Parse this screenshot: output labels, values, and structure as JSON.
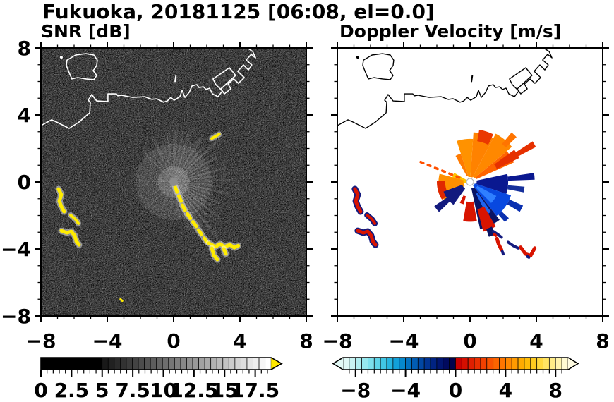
{
  "header": {
    "title": "Fukuoka, 20181125 [06:08, el=0.0]"
  },
  "panels": {
    "snr": {
      "label": "SNR [dB]"
    },
    "velocity": {
      "label": "Doppler Velocity [m/s]"
    }
  },
  "chart_data": [
    {
      "id": "snr",
      "type": "heatmap",
      "title": "SNR [dB]",
      "xlim": [
        -8,
        8
      ],
      "ylim": [
        -8,
        8
      ],
      "xtick_values": [
        -8,
        -4,
        0,
        4,
        8
      ],
      "xtick_labels": [
        "−8",
        "−4",
        "0",
        "4",
        "8"
      ],
      "ytick_values": [
        8,
        4,
        0,
        -4,
        -8
      ],
      "ytick_labels": [
        "8",
        "4",
        "0",
        "−4",
        "−8"
      ],
      "minor_tick_step": 1,
      "grid": false,
      "background": "#050505",
      "coast_color": "#ffffff",
      "colorbar": {
        "kind": "gray-ramp",
        "range": [
          0,
          18.8
        ],
        "solid_black_until": 5,
        "steps": 28,
        "ramp_from": "#101010",
        "ramp_to": "#ffffff",
        "over_arrow_color": "#ffe800",
        "tick_values": [
          0,
          2.5,
          5,
          7.5,
          10,
          12.5,
          15,
          17.5
        ],
        "tick_labels": [
          "0",
          "2.5",
          "5",
          "7.5",
          "10",
          "12.5",
          "15",
          "17.5"
        ],
        "minor_tick_step": 0.5
      }
    },
    {
      "id": "velocity",
      "type": "heatmap",
      "title": "Doppler Velocity [m/s]",
      "xlim": [
        -8,
        8
      ],
      "ylim": [
        -8,
        8
      ],
      "xtick_values": [
        -8,
        -4,
        0,
        4,
        8
      ],
      "xtick_labels": [
        "−8",
        "−4",
        "0",
        "4",
        "8"
      ],
      "ytick_values": [
        8,
        4,
        0,
        -4,
        -8
      ],
      "ytick_labels": [],
      "minor_tick_step": 1,
      "grid": false,
      "background": "#ffffff",
      "coast_color": "#000000",
      "colorbar": {
        "kind": "diverging",
        "range": [
          -9,
          9
        ],
        "under_arrow_color": "#e2f9f6",
        "over_arrow_color": "#fffce2",
        "segment_colors": [
          "#dff8f6",
          "#c8f3f2",
          "#b0eef0",
          "#97e8ee",
          "#7ce0ec",
          "#5fd5e9",
          "#41c7e5",
          "#27b5e0",
          "#12a0d8",
          "#0689cd",
          "#0272c0",
          "#015cb2",
          "#0147a3",
          "#013493",
          "#012382",
          "#011570",
          "#010a5e",
          "#02034c",
          "#c80000",
          "#d40f00",
          "#e01f00",
          "#ea2f00",
          "#f24000",
          "#f85200",
          "#fc6400",
          "#ff7600",
          "#ff8800",
          "#ff9a00",
          "#ffab00",
          "#ffbc07",
          "#ffcb1f",
          "#ffd83e",
          "#ffe362",
          "#ffec88",
          "#fff4ae",
          "#fffad2"
        ],
        "tick_values": [
          -8,
          -4,
          0,
          4,
          8
        ],
        "tick_labels": [
          "−8",
          "−4",
          "0",
          "4",
          "8"
        ],
        "minor_tick_step": 0.5
      }
    }
  ],
  "coastline": {
    "main": [
      [
        -8.0,
        3.37
      ],
      [
        -7.36,
        3.71
      ],
      [
        -7.06,
        3.58
      ],
      [
        -6.3,
        3.2
      ],
      [
        -5.7,
        3.58
      ],
      [
        -5.06,
        4.13
      ],
      [
        -5.02,
        4.76
      ],
      [
        -5.15,
        4.88
      ],
      [
        -4.94,
        5.22
      ],
      [
        -4.64,
        4.84
      ],
      [
        -3.96,
        4.8
      ],
      [
        -3.96,
        5.26
      ],
      [
        -3.45,
        5.26
      ],
      [
        -3.36,
        5.14
      ],
      [
        -3.15,
        5.18
      ],
      [
        -2.47,
        5.05
      ],
      [
        -1.74,
        5.09
      ],
      [
        -1.32,
        4.93
      ],
      [
        -1.02,
        4.97
      ],
      [
        -0.6,
        4.76
      ],
      [
        -0.38,
        4.84
      ],
      [
        -0.17,
        5.05
      ],
      [
        0.04,
        4.88
      ],
      [
        0.38,
        5.09
      ],
      [
        0.51,
        5.47
      ],
      [
        0.68,
        5.05
      ],
      [
        0.94,
        5.35
      ],
      [
        1.11,
        5.73
      ],
      [
        1.4,
        5.81
      ],
      [
        1.53,
        5.64
      ],
      [
        1.79,
        5.68
      ],
      [
        1.96,
        5.52
      ],
      [
        2.17,
        5.6
      ],
      [
        2.34,
        5.26
      ],
      [
        2.68,
        5.09
      ],
      [
        2.94,
        5.43
      ],
      [
        2.55,
        5.81
      ],
      [
        2.38,
        6.15
      ],
      [
        3.36,
        6.82
      ],
      [
        3.74,
        6.36
      ],
      [
        2.85,
        5.56
      ],
      [
        3.06,
        5.26
      ],
      [
        3.45,
        5.56
      ],
      [
        3.28,
        5.85
      ],
      [
        3.62,
        6.15
      ],
      [
        3.91,
        5.89
      ],
      [
        4.26,
        6.23
      ],
      [
        3.87,
        6.61
      ],
      [
        4.21,
        6.99
      ],
      [
        4.51,
        6.69
      ],
      [
        4.72,
        6.99
      ],
      [
        4.38,
        7.28
      ],
      [
        4.68,
        7.62
      ],
      [
        4.94,
        7.41
      ],
      [
        4.77,
        7.79
      ],
      [
        4.43,
        8.0
      ]
    ],
    "island": [
      [
        -6.43,
        7.27
      ],
      [
        -5.91,
        7.58
      ],
      [
        -5.28,
        7.66
      ],
      [
        -4.81,
        7.58
      ],
      [
        -4.6,
        7.27
      ],
      [
        -4.64,
        6.95
      ],
      [
        -4.85,
        6.65
      ],
      [
        -4.64,
        6.36
      ],
      [
        -4.81,
        6.11
      ],
      [
        -5.28,
        6.15
      ],
      [
        -5.79,
        6.23
      ],
      [
        -6.13,
        6.15
      ],
      [
        -6.3,
        6.53
      ],
      [
        -6.47,
        6.95
      ]
    ],
    "dot": [
      -6.77,
      7.45
    ],
    "tick_mark": [
      [
        0.09,
        6.0
      ],
      [
        0.14,
        6.35
      ]
    ]
  },
  "snr_content": {
    "center_color": "#8c8c8c",
    "yellow_color": "#ffec00",
    "rays": [
      [
        88,
        3.6,
        3,
        0.3
      ],
      [
        80,
        3.1,
        2,
        0.22
      ],
      [
        72,
        3.4,
        2.5,
        0.33
      ],
      [
        65,
        2.6,
        2,
        0.27
      ],
      [
        58,
        3.2,
        2,
        0.38
      ],
      [
        50,
        2.8,
        2,
        0.3
      ],
      [
        43,
        3.9,
        1.5,
        0.45
      ],
      [
        36,
        2.3,
        2,
        0.25
      ],
      [
        30,
        3.0,
        1.5,
        0.33
      ],
      [
        22,
        2.5,
        1.5,
        0.28
      ],
      [
        15,
        3.3,
        1.5,
        0.4
      ],
      [
        8,
        2.7,
        1.5,
        0.3
      ],
      [
        2,
        3.8,
        1.2,
        0.35
      ],
      [
        -5,
        2.9,
        1.5,
        0.3
      ],
      [
        -12,
        3.4,
        1.5,
        0.4
      ],
      [
        -18,
        2.5,
        1.5,
        0.28
      ],
      [
        -25,
        3.1,
        1.5,
        0.35
      ],
      [
        -32,
        2.7,
        2,
        0.3
      ],
      [
        -38,
        3.5,
        1.5,
        0.42
      ],
      [
        -45,
        2.9,
        2,
        0.34
      ],
      [
        -52,
        4.6,
        1.5,
        0.5
      ],
      [
        -58,
        3.3,
        2,
        0.35
      ],
      [
        -65,
        2.6,
        2,
        0.3
      ],
      [
        -72,
        3.0,
        2,
        0.26
      ],
      [
        -80,
        2.2,
        2,
        0.2
      ],
      [
        -95,
        1.8,
        2,
        0.18
      ],
      [
        -115,
        1.5,
        2,
        0.15
      ],
      [
        -135,
        2.9,
        1,
        0.3
      ],
      [
        -150,
        1.6,
        1.5,
        0.18
      ],
      [
        178,
        2.1,
        1.5,
        0.2
      ],
      [
        170,
        1.4,
        2,
        0.16
      ],
      [
        160,
        1.1,
        2,
        0.15
      ],
      [
        135,
        2.6,
        2,
        0.22
      ],
      [
        126,
        2.0,
        2,
        0.18
      ],
      [
        115,
        2.9,
        2.5,
        0.28
      ],
      [
        105,
        2.4,
        2,
        0.22
      ],
      [
        97,
        3.0,
        2,
        0.26
      ]
    ],
    "features": [
      {
        "pts": [
          [
            0.09,
            -0.29
          ],
          [
            0.26,
            -0.72
          ],
          [
            0.43,
            -1.09
          ],
          [
            0.55,
            -1.43
          ],
          [
            0.77,
            -1.81
          ],
          [
            1.02,
            -2.19
          ],
          [
            1.28,
            -2.53
          ],
          [
            1.53,
            -2.91
          ],
          [
            1.79,
            -3.28
          ],
          [
            2.0,
            -3.58
          ]
        ],
        "w": 5,
        "dash": "8 6",
        "glow": true
      },
      {
        "pts": [
          [
            2.13,
            -3.66
          ],
          [
            2.51,
            -3.87
          ],
          [
            2.81,
            -3.7
          ],
          [
            3.06,
            -3.87
          ],
          [
            3.4,
            -3.75
          ],
          [
            3.66,
            -3.92
          ],
          [
            3.9,
            -3.8
          ]
        ],
        "w": 5,
        "glow": true
      },
      {
        "pts": [
          [
            2.3,
            -3.96
          ],
          [
            2.43,
            -4.38
          ],
          [
            2.64,
            -4.63
          ]
        ],
        "w": 5,
        "glow": true
      },
      {
        "pts": [
          [
            3.02,
            -4.0
          ],
          [
            3.15,
            -4.29
          ]
        ],
        "w": 5,
        "glow": true
      },
      {
        "pts": [
          [
            -6.94,
            -0.42
          ],
          [
            -6.77,
            -0.76
          ],
          [
            -6.89,
            -1.14
          ],
          [
            -6.77,
            -1.47
          ],
          [
            -6.6,
            -1.77
          ]
        ],
        "w": 5,
        "glow": true
      },
      {
        "pts": [
          [
            -6.21,
            -1.98
          ],
          [
            -5.91,
            -2.23
          ],
          [
            -5.74,
            -2.48
          ]
        ],
        "w": 4,
        "glow": true
      },
      {
        "pts": [
          [
            -6.77,
            -2.91
          ],
          [
            -6.43,
            -3.03
          ],
          [
            -6.17,
            -2.95
          ],
          [
            -5.96,
            -3.2
          ],
          [
            -5.87,
            -3.54
          ],
          [
            -5.7,
            -3.75
          ]
        ],
        "w": 5,
        "glow": true
      },
      {
        "pts": [
          [
            2.3,
            2.6
          ],
          [
            2.75,
            2.85
          ]
        ],
        "w": 4,
        "glow": true
      },
      {
        "pts": [
          [
            -3.2,
            -7.0
          ],
          [
            -3.1,
            -7.1
          ]
        ],
        "w": 3,
        "glow": false
      }
    ]
  },
  "velocity_content": {
    "center_hole_color": "#ffffff",
    "wedges": [
      [
        24,
        40,
        0.4,
        2.9,
        "#ff6400"
      ],
      [
        26,
        36,
        1.8,
        3.3,
        "#e63000"
      ],
      [
        28,
        33,
        2.9,
        4.5,
        "#e63000"
      ],
      [
        40,
        62,
        0.35,
        3.3,
        "#ff8800"
      ],
      [
        44,
        50,
        3.0,
        3.9,
        "#ff7400"
      ],
      [
        62,
        86,
        0.3,
        3.0,
        "#ff8200"
      ],
      [
        64,
        80,
        2.5,
        3.2,
        "#ea3800"
      ],
      [
        86,
        108,
        0.3,
        2.6,
        "#ff9200"
      ],
      [
        108,
        119,
        0.4,
        1.8,
        "#ff7a00"
      ],
      [
        150,
        190,
        0.25,
        1.1,
        "#ffc400"
      ],
      [
        165,
        216,
        0.4,
        1.9,
        "#ff9000"
      ],
      [
        178,
        212,
        1.5,
        2.0,
        "#e02800"
      ],
      [
        200,
        234,
        0.5,
        1.7,
        "#131a7e"
      ],
      [
        -18,
        12,
        0.4,
        2.3,
        "#0a1890"
      ],
      [
        2,
        8,
        2.3,
        3.9,
        "#0a1890"
      ],
      [
        -11,
        -5,
        2.3,
        3.3,
        "#16309c"
      ],
      [
        -52,
        -18,
        0.3,
        2.6,
        "#0848e0"
      ],
      [
        -45,
        -28,
        0.5,
        1.8,
        "#2f7fff"
      ],
      [
        -31,
        -24,
        2.6,
        3.5,
        "#0a30b0"
      ],
      [
        -49,
        -43,
        2.6,
        3.2,
        "#0a30b0"
      ],
      [
        -78,
        -52,
        0.4,
        2.9,
        "#0a1464"
      ],
      [
        -63,
        -55,
        0.8,
        2.2,
        "#1e64f0"
      ],
      [
        -75,
        -60,
        1.7,
        3.1,
        "#d81400"
      ],
      [
        -100,
        -80,
        1.2,
        2.4,
        "#d81400"
      ],
      [
        -71,
        -64,
        3.0,
        3.5,
        "#0a1464"
      ],
      [
        -146,
        -136,
        0.7,
        2.6,
        "#131a7e"
      ],
      [
        -116,
        -106,
        0.9,
        1.4,
        "#d81400"
      ]
    ],
    "dotted_ray": {
      "angle": 158,
      "r0": 0.7,
      "r1": 3.4,
      "color": "#ff5000"
    },
    "features": [
      {
        "pts": [
          [
            -6.94,
            -0.42
          ],
          [
            -6.77,
            -0.76
          ],
          [
            -6.89,
            -1.14
          ],
          [
            -6.77,
            -1.47
          ],
          [
            -6.6,
            -1.77
          ]
        ],
        "w": 5,
        "color": "#d81400",
        "fringe": "#131a7e"
      },
      {
        "pts": [
          [
            -6.21,
            -1.98
          ],
          [
            -5.91,
            -2.23
          ],
          [
            -5.74,
            -2.48
          ]
        ],
        "w": 4,
        "color": "#d81400",
        "fringe": "#131a7e"
      },
      {
        "pts": [
          [
            -6.77,
            -2.91
          ],
          [
            -6.43,
            -3.03
          ],
          [
            -6.17,
            -2.95
          ],
          [
            -5.96,
            -3.2
          ],
          [
            -5.87,
            -3.54
          ],
          [
            -5.7,
            -3.75
          ]
        ],
        "w": 5,
        "color": "#d81400",
        "fringe": "#131a7e"
      },
      {
        "pts": [
          [
            1.4,
            -2.95
          ],
          [
            1.7,
            -3.15
          ],
          [
            1.9,
            -3.3
          ]
        ],
        "w": 4,
        "color": "#131a7e"
      },
      {
        "pts": [
          [
            1.45,
            -3.12
          ],
          [
            1.55,
            -3.2
          ]
        ],
        "w": 4,
        "color": "#d81400"
      },
      {
        "pts": [
          [
            1.62,
            -3.38
          ],
          [
            1.72,
            -3.7
          ],
          [
            1.9,
            -4.05
          ]
        ],
        "w": 5,
        "color": "#d81400"
      },
      {
        "pts": [
          [
            1.95,
            -4.15
          ],
          [
            2.0,
            -4.3
          ]
        ],
        "w": 4,
        "color": "#131a7e"
      },
      {
        "pts": [
          [
            2.3,
            -3.6
          ],
          [
            2.6,
            -3.8
          ],
          [
            2.9,
            -3.95
          ]
        ],
        "w": 4,
        "color": "#131a7e"
      },
      {
        "pts": [
          [
            3.05,
            -3.9
          ],
          [
            3.35,
            -4.3
          ],
          [
            3.65,
            -4.4
          ],
          [
            3.9,
            -3.95
          ]
        ],
        "w": 5,
        "color": "#d81400"
      },
      {
        "pts": [
          [
            3.45,
            -4.45
          ],
          [
            3.55,
            -4.5
          ]
        ],
        "w": 4,
        "color": "#131a7e"
      }
    ]
  }
}
